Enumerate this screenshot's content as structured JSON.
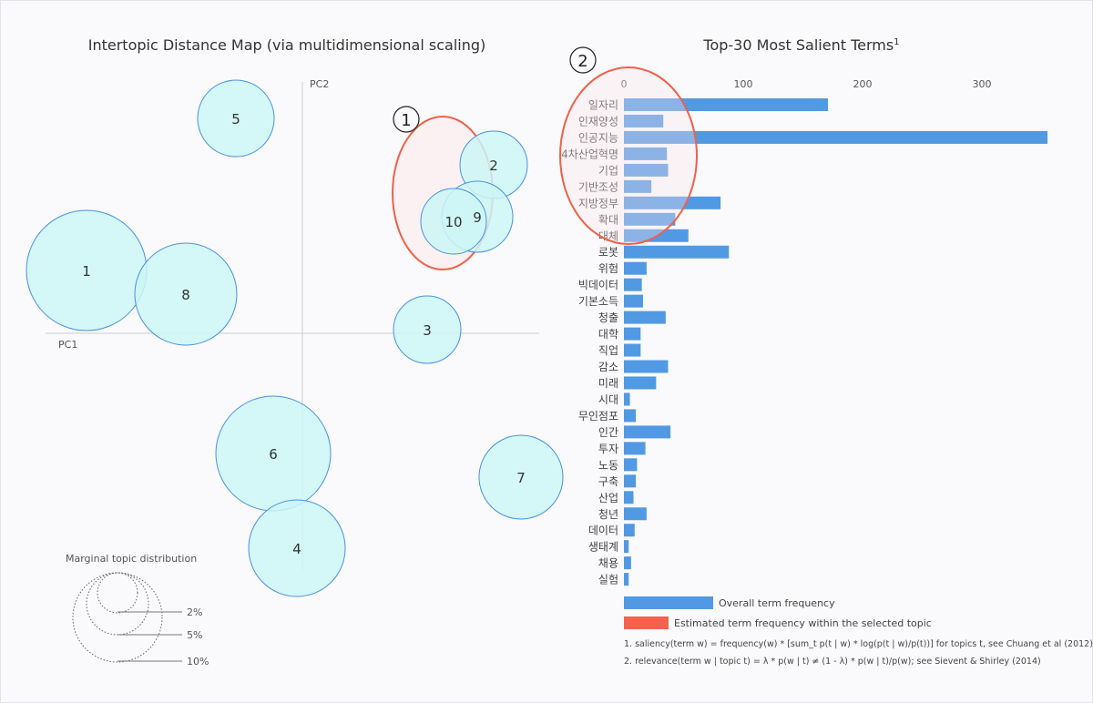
{
  "chart_data": [
    {
      "type": "scatter",
      "title": "Intertopic Distance Map (via multidimensional scaling)",
      "xlabel": "PC1",
      "ylabel": "PC2",
      "topics": [
        "1",
        "2",
        "3",
        "4",
        "5",
        "6",
        "7",
        "8",
        "9",
        "10"
      ],
      "legend": {
        "title": "Marginal topic distribution",
        "levels": [
          "2%",
          "5%",
          "10%"
        ]
      },
      "annotation": "①",
      "colors": {
        "bubble_fill": "#cdf6f6",
        "bubble_stroke": "#4a90e2",
        "highlight": "#f0604a"
      }
    },
    {
      "type": "bar",
      "title": "Top-30 Most Salient Terms",
      "title_sup": "1",
      "annotation": "②",
      "xticks": [
        "0",
        "100",
        "200",
        "300"
      ],
      "xlim": [
        0,
        370
      ],
      "categories": [
        "일자리",
        "인재양성",
        "인공지능",
        "4차산업혁명",
        "기업",
        "기반조성",
        "지방정부",
        "확대",
        "대체",
        "로봇",
        "위험",
        "빅데이터",
        "기본소득",
        "청출",
        "대학",
        "직업",
        "감소",
        "미래",
        "시대",
        "무인점포",
        "인간",
        "투자",
        "노동",
        "구축",
        "산업",
        "청년",
        "데이터",
        "생태계",
        "채용",
        "실험"
      ],
      "values": [
        171,
        33,
        355,
        36,
        37,
        23,
        81,
        43,
        54,
        88,
        19,
        15,
        16,
        35,
        14,
        14,
        37,
        27,
        5,
        10,
        39,
        18,
        11,
        10,
        8,
        19,
        9,
        4,
        6,
        4
      ],
      "legend": {
        "overall": "Overall term frequency",
        "topic": "Estimated term frequency within the selected topic"
      },
      "footnotes": [
        "1. saliency(term w) = frequency(w) * [sum_t p(t | w) * log(p(t | w)/p(t))] for topics t, see Chuang et al (2012)",
        "2. relevance(term w | topic t) = λ * p(w | t) ≠ (1 - λ) * p(w | t)/p(w); see Sievent & Shirley (2014)"
      ],
      "colors": {
        "overall": "#5299e3",
        "topic": "#f4624e"
      }
    }
  ]
}
